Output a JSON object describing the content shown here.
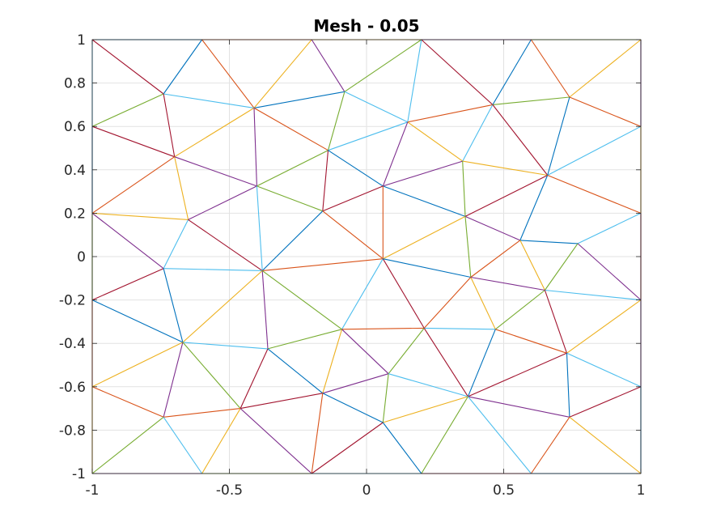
{
  "chart_data": {
    "type": "mesh",
    "title": "Mesh - 0.05",
    "xlim": [
      -1,
      1
    ],
    "ylim": [
      -1,
      1
    ],
    "xticks": [
      -1,
      -0.5,
      0,
      0.5,
      1
    ],
    "xtick_labels": [
      "-1",
      "-0.5",
      "0",
      "0.5",
      "1"
    ],
    "yticks": [
      -1,
      -0.8,
      -0.6,
      -0.4,
      -0.2,
      0,
      0.2,
      0.4,
      0.6,
      0.8,
      1
    ],
    "ytick_labels": [
      "-1",
      "-0.8",
      "-0.6",
      "-0.4",
      "-0.2",
      "0",
      "0.2",
      "0.4",
      "0.6",
      "0.8",
      "1"
    ],
    "grid": true,
    "edge_colors": [
      "#0072BD",
      "#D95319",
      "#EDB120",
      "#7E2F8E",
      "#77AC30",
      "#4DBEEE",
      "#A2142F"
    ],
    "nodes": [
      [
        -1,
        1
      ],
      [
        -0.6,
        1
      ],
      [
        -0.2,
        1
      ],
      [
        0.2,
        1
      ],
      [
        0.6,
        1
      ],
      [
        1,
        1
      ],
      [
        -0.74,
        0.75
      ],
      [
        -0.41,
        0.685
      ],
      [
        -0.08,
        0.76
      ],
      [
        0.46,
        0.7
      ],
      [
        0.74,
        0.735
      ],
      [
        -1,
        0.6
      ],
      [
        -0.7,
        0.46
      ],
      [
        -0.14,
        0.49
      ],
      [
        0.15,
        0.62
      ],
      [
        0.35,
        0.44
      ],
      [
        0.66,
        0.375
      ],
      [
        1,
        0.6
      ],
      [
        -0.4,
        0.325
      ],
      [
        0.06,
        0.325
      ],
      [
        -1,
        0.2
      ],
      [
        -0.65,
        0.17
      ],
      [
        -0.16,
        0.21
      ],
      [
        0.36,
        0.185
      ],
      [
        1,
        0.2
      ],
      [
        0.56,
        0.075
      ],
      [
        0.77,
        0.06
      ],
      [
        -0.74,
        -0.055
      ],
      [
        -0.38,
        -0.065
      ],
      [
        0.06,
        -0.01
      ],
      [
        0.38,
        -0.095
      ],
      [
        0.65,
        -0.155
      ],
      [
        -1,
        -0.2
      ],
      [
        1,
        -0.2
      ],
      [
        -0.36,
        -0.425
      ],
      [
        -0.09,
        -0.335
      ],
      [
        0.21,
        -0.33
      ],
      [
        0.47,
        -0.335
      ],
      [
        -0.67,
        -0.395
      ],
      [
        0.73,
        -0.445
      ],
      [
        -1,
        -0.6
      ],
      [
        0.08,
        -0.54
      ],
      [
        -0.16,
        -0.63
      ],
      [
        0.37,
        -0.645
      ],
      [
        1,
        -0.6
      ],
      [
        -0.46,
        -0.7
      ],
      [
        -0.74,
        -0.74
      ],
      [
        0.06,
        -0.765
      ],
      [
        0.74,
        -0.74
      ],
      [
        -1,
        -1
      ],
      [
        -0.6,
        -1
      ],
      [
        -0.2,
        -1
      ],
      [
        0.2,
        -1
      ],
      [
        0.6,
        -1
      ],
      [
        1,
        -1
      ]
    ],
    "edges": [
      [
        0,
        1
      ],
      [
        1,
        2
      ],
      [
        2,
        3
      ],
      [
        3,
        4
      ],
      [
        4,
        5
      ],
      [
        0,
        11
      ],
      [
        0,
        6
      ],
      [
        1,
        6
      ],
      [
        1,
        7
      ],
      [
        2,
        7
      ],
      [
        2,
        8
      ],
      [
        3,
        8
      ],
      [
        3,
        14
      ],
      [
        3,
        9
      ],
      [
        4,
        9
      ],
      [
        4,
        10
      ],
      [
        5,
        10
      ],
      [
        5,
        17
      ],
      [
        6,
        11
      ],
      [
        6,
        7
      ],
      [
        6,
        12
      ],
      [
        7,
        8
      ],
      [
        7,
        13
      ],
      [
        7,
        12
      ],
      [
        7,
        18
      ],
      [
        8,
        13
      ],
      [
        8,
        14
      ],
      [
        11,
        12
      ],
      [
        11,
        20
      ],
      [
        12,
        20
      ],
      [
        12,
        21
      ],
      [
        12,
        18
      ],
      [
        13,
        18
      ],
      [
        13,
        14
      ],
      [
        13,
        22
      ],
      [
        13,
        19
      ],
      [
        14,
        9
      ],
      [
        14,
        15
      ],
      [
        14,
        19
      ],
      [
        9,
        10
      ],
      [
        9,
        15
      ],
      [
        9,
        16
      ],
      [
        10,
        16
      ],
      [
        10,
        17
      ],
      [
        15,
        16
      ],
      [
        15,
        19
      ],
      [
        15,
        23
      ],
      [
        16,
        17
      ],
      [
        16,
        23
      ],
      [
        16,
        25
      ],
      [
        16,
        24
      ],
      [
        17,
        24
      ],
      [
        18,
        21
      ],
      [
        18,
        22
      ],
      [
        18,
        28
      ],
      [
        19,
        22
      ],
      [
        19,
        23
      ],
      [
        19,
        29
      ],
      [
        20,
        21
      ],
      [
        20,
        27
      ],
      [
        20,
        32
      ],
      [
        21,
        27
      ],
      [
        21,
        28
      ],
      [
        22,
        28
      ],
      [
        22,
        29
      ],
      [
        23,
        29
      ],
      [
        23,
        25
      ],
      [
        23,
        30
      ],
      [
        24,
        26
      ],
      [
        24,
        33
      ],
      [
        25,
        26
      ],
      [
        25,
        30
      ],
      [
        25,
        31
      ],
      [
        26,
        33
      ],
      [
        26,
        31
      ],
      [
        27,
        28
      ],
      [
        27,
        32
      ],
      [
        27,
        38
      ],
      [
        28,
        29
      ],
      [
        28,
        38
      ],
      [
        28,
        34
      ],
      [
        28,
        35
      ],
      [
        29,
        35
      ],
      [
        29,
        36
      ],
      [
        29,
        30
      ],
      [
        30,
        36
      ],
      [
        30,
        37
      ],
      [
        30,
        31
      ],
      [
        31,
        37
      ],
      [
        31,
        33
      ],
      [
        31,
        39
      ],
      [
        32,
        38
      ],
      [
        32,
        40
      ],
      [
        33,
        39
      ],
      [
        33,
        44
      ],
      [
        34,
        35
      ],
      [
        34,
        38
      ],
      [
        34,
        45
      ],
      [
        34,
        42
      ],
      [
        35,
        36
      ],
      [
        35,
        42
      ],
      [
        35,
        41
      ],
      [
        36,
        41
      ],
      [
        36,
        37
      ],
      [
        36,
        43
      ],
      [
        37,
        43
      ],
      [
        37,
        39
      ],
      [
        38,
        40
      ],
      [
        38,
        46
      ],
      [
        38,
        45
      ],
      [
        39,
        44
      ],
      [
        39,
        43
      ],
      [
        39,
        48
      ],
      [
        40,
        46
      ],
      [
        40,
        49
      ],
      [
        41,
        42
      ],
      [
        41,
        47
      ],
      [
        41,
        43
      ],
      [
        42,
        45
      ],
      [
        42,
        47
      ],
      [
        42,
        51
      ],
      [
        43,
        47
      ],
      [
        43,
        48
      ],
      [
        43,
        52
      ],
      [
        43,
        53
      ],
      [
        44,
        48
      ],
      [
        44,
        54
      ],
      [
        45,
        46
      ],
      [
        45,
        50
      ],
      [
        45,
        51
      ],
      [
        46,
        49
      ],
      [
        46,
        50
      ],
      [
        47,
        51
      ],
      [
        47,
        52
      ],
      [
        48,
        53
      ],
      [
        48,
        54
      ],
      [
        49,
        50
      ],
      [
        50,
        51
      ],
      [
        51,
        52
      ],
      [
        52,
        53
      ],
      [
        53,
        54
      ]
    ]
  }
}
